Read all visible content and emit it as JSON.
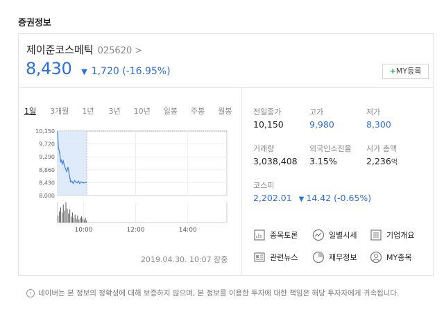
{
  "section_title": "증권정보",
  "stock": {
    "name": "제이준코스메틱",
    "code": "025620",
    "price": "8,430",
    "change": "1,720 (-16.95%)"
  },
  "my_button_label": "MY등록",
  "periods": [
    "1일",
    "3개월",
    "1년",
    "3년",
    "10년",
    "일봉",
    "주봉",
    "월봉"
  ],
  "timestamp": "2019.04.30. 10:07 장중",
  "info": {
    "prev_close_label": "전일종가",
    "prev_close": "10,150",
    "high_label": "고가",
    "high": "9,980",
    "low_label": "저가",
    "low": "8,300",
    "volume_label": "거래량",
    "volume": "3,038,408",
    "foreign_label": "외국인소진율",
    "foreign": "3.15%",
    "market_cap_label": "시가 총액",
    "market_cap": "2,236",
    "market_cap_unit": "억",
    "index_label": "코스피",
    "index_value": "2,202.01",
    "index_change": "14.42 (-0.65%)"
  },
  "links": [
    "종목토론",
    "일별시세",
    "기업개요",
    "관련뉴스",
    "재무정보",
    "MY종목"
  ],
  "notice": "네이버는 본 정보의 정확성에 대해 보증하지 않으며, 본 정보를 이용한 투자에 대한 책임은 해당 투자자에게 귀속됩니다.",
  "colors": {
    "down": "#2b6fdc",
    "accent_green": "#14a05a"
  },
  "chart_data": {
    "type": "line",
    "y_ticks": [
      "10,150",
      "9,720",
      "9,290",
      "8,860",
      "8,430",
      "8,000"
    ],
    "x_ticks": [
      "10:00",
      "12:00",
      "14:00"
    ],
    "ylim": [
      8000,
      10150
    ],
    "price_series": [
      [
        9.0,
        10150
      ],
      [
        9.03,
        9600
      ],
      [
        9.06,
        9500
      ],
      [
        9.09,
        9350
      ],
      [
        9.12,
        9100
      ],
      [
        9.15,
        9200
      ],
      [
        9.18,
        9050
      ],
      [
        9.22,
        9150
      ],
      [
        9.26,
        9000
      ],
      [
        9.3,
        8900
      ],
      [
        9.35,
        8800
      ],
      [
        9.4,
        8950
      ],
      [
        9.45,
        8700
      ],
      [
        9.5,
        8450
      ],
      [
        9.55,
        8480
      ],
      [
        9.6,
        8400
      ],
      [
        9.65,
        8500
      ],
      [
        9.7,
        8450
      ],
      [
        9.75,
        8420
      ],
      [
        9.8,
        8480
      ],
      [
        9.85,
        8400
      ],
      [
        9.9,
        8460
      ],
      [
        9.95,
        8430
      ],
      [
        10.0,
        8420
      ],
      [
        10.06,
        8430
      ],
      [
        10.12,
        8430
      ]
    ],
    "volume_series": [
      [
        9.02,
        0.35
      ],
      [
        9.07,
        0.55
      ],
      [
        9.12,
        0.75
      ],
      [
        9.17,
        0.5
      ],
      [
        9.22,
        0.9
      ],
      [
        9.27,
        0.6
      ],
      [
        9.32,
        1.0
      ],
      [
        9.37,
        0.7
      ],
      [
        9.42,
        0.45
      ],
      [
        9.47,
        0.65
      ],
      [
        9.52,
        0.3
      ],
      [
        9.57,
        0.5
      ],
      [
        9.62,
        0.25
      ],
      [
        9.67,
        0.4
      ],
      [
        9.72,
        0.2
      ],
      [
        9.77,
        0.35
      ],
      [
        9.82,
        0.15
      ],
      [
        9.87,
        0.25
      ],
      [
        9.92,
        0.3
      ],
      [
        9.97,
        0.2
      ],
      [
        10.02,
        0.15
      ],
      [
        10.07,
        0.25
      ],
      [
        10.11,
        0.1
      ]
    ],
    "x_range": [
      9.0,
      15.5
    ]
  }
}
